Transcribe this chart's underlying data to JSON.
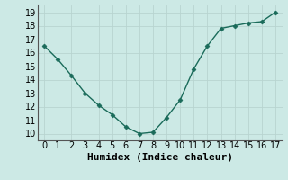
{
  "x": [
    0,
    1,
    2,
    3,
    4,
    5,
    6,
    7,
    8,
    9,
    10,
    11,
    12,
    13,
    14,
    15,
    16,
    17
  ],
  "y": [
    16.5,
    15.5,
    14.3,
    13.0,
    12.1,
    11.4,
    10.5,
    10.0,
    10.1,
    11.2,
    12.5,
    14.8,
    16.5,
    17.8,
    18.0,
    18.2,
    18.3,
    19.0
  ],
  "xlabel": "Humidex (Indice chaleur)",
  "ylim": [
    9.5,
    19.5
  ],
  "xlim": [
    -0.5,
    17.5
  ],
  "yticks": [
    10,
    11,
    12,
    13,
    14,
    15,
    16,
    17,
    18,
    19
  ],
  "xticks": [
    0,
    1,
    2,
    3,
    4,
    5,
    6,
    7,
    8,
    9,
    10,
    11,
    12,
    13,
    14,
    15,
    16,
    17
  ],
  "line_color": "#1a6b5a",
  "marker_color": "#1a6b5a",
  "bg_color": "#cce9e5",
  "grid_color": "#b8d4d0",
  "xlabel_fontsize": 8,
  "tick_fontsize": 7
}
